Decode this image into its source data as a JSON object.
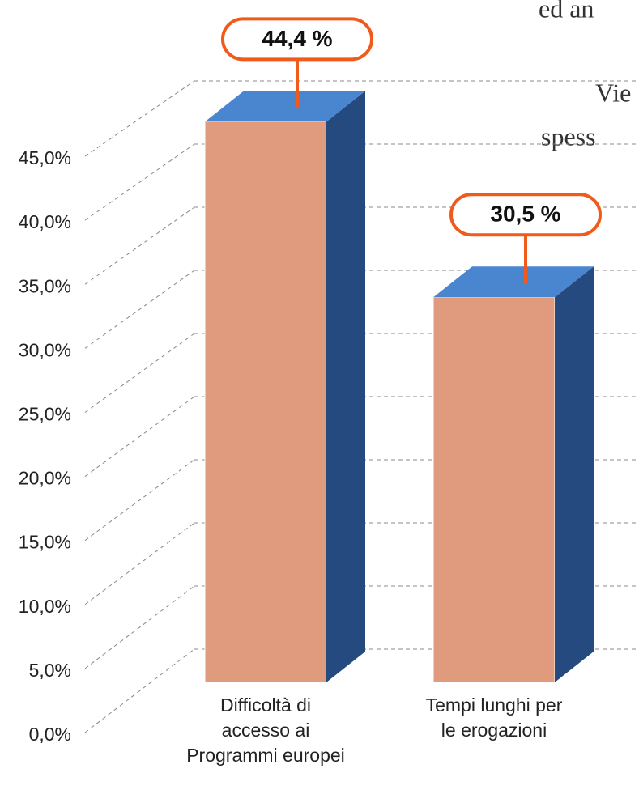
{
  "chart_data": {
    "type": "bar3d",
    "categories": [
      "Difficoltà di\naccesso ai\nProgrammi europei",
      "Tempi lunghi per\nle erogazioni"
    ],
    "values": [
      44.4,
      30.5
    ],
    "value_labels": [
      "44,4 %",
      "30,5 %"
    ],
    "colors": {
      "front": "#e09a7e",
      "top": "#4a86d0",
      "side": "#244a80",
      "callout": "#f05a1a"
    },
    "ylim": [
      0,
      45
    ],
    "yticks": [
      {
        "value": 0,
        "label": "0,0%"
      },
      {
        "value": 5,
        "label": "5,0%"
      },
      {
        "value": 10,
        "label": "10,0%"
      },
      {
        "value": 15,
        "label": "15,0%"
      },
      {
        "value": 20,
        "label": "20,0%"
      },
      {
        "value": 25,
        "label": "25,0%"
      },
      {
        "value": 30,
        "label": "30,0%"
      },
      {
        "value": 35,
        "label": "35,0%"
      },
      {
        "value": 40,
        "label": "40,0%"
      },
      {
        "value": 45,
        "label": "45,0%"
      }
    ],
    "grid": true
  },
  "background_text": [
    "ed an",
    "Vie",
    "spess"
  ]
}
